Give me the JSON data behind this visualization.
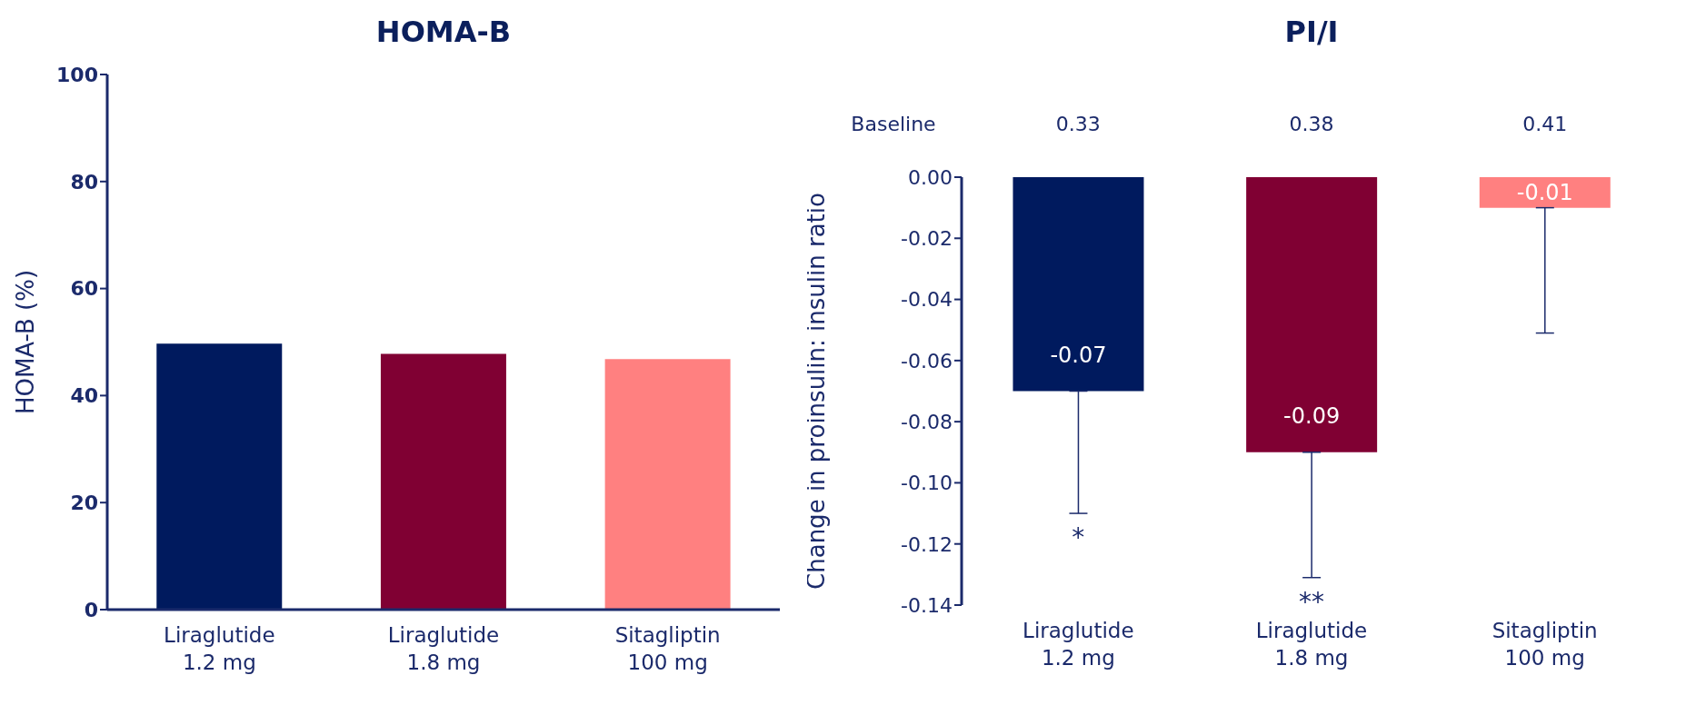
{
  "chart_data": [
    {
      "type": "bar",
      "title": "HOMA-B",
      "ylabel": "HOMA-B (%)",
      "categories": [
        "Liraglutide\n1.2 mg",
        "Liraglutide\n1.8 mg",
        "Sitagliptin\n100 mg"
      ],
      "values": [
        49.7,
        47.8,
        46.8
      ],
      "colors": [
        "#001a5e",
        "#800033",
        "#ff8080"
      ],
      "ylim": [
        0,
        100
      ],
      "yticks": [
        0,
        20,
        40,
        60,
        80,
        100
      ]
    },
    {
      "type": "bar",
      "title": "PI/I",
      "ylabel": "Change in proinsulin: insulin ratio",
      "categories": [
        "Liraglutide\n1.2 mg",
        "Liraglutide\n1.8 mg",
        "Sitagliptin\n100 mg"
      ],
      "values": [
        -0.07,
        -0.09,
        -0.01
      ],
      "colors": [
        "#001a5e",
        "#800033",
        "#ff8080"
      ],
      "errors": [
        [
          -0.11,
          -0.07
        ],
        [
          -0.131,
          -0.09
        ],
        [
          -0.051,
          -0.01
        ]
      ],
      "data_labels": true,
      "ylim": [
        -0.14,
        0
      ],
      "yticks": [
        {
          "value": 0,
          "label": "0.00"
        },
        {
          "value": -0.02,
          "label": "-0.02"
        },
        {
          "value": -0.04,
          "label": "-0.04"
        },
        {
          "value": -0.06,
          "label": "-0.06"
        },
        {
          "value": -0.08,
          "label": "-0.08"
        },
        {
          "value": -0.1,
          "label": "-0.10"
        },
        {
          "value": -0.12,
          "label": "-0.12"
        },
        {
          "value": -0.14,
          "label": "-0.14"
        }
      ],
      "annotations": [
        "Baseline",
        "0.33",
        "0.38",
        "0.41",
        "*",
        "**"
      ]
    }
  ]
}
